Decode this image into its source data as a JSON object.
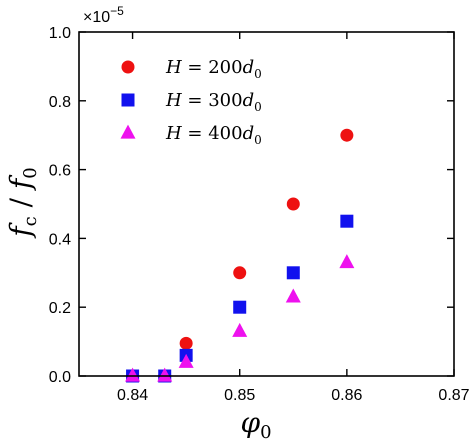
{
  "chart_data": {
    "type": "scatter",
    "xlabel": "φ",
    "xlabel_sub": "0",
    "ylabel_num": "f",
    "ylabel_num_sub": "c",
    "ylabel_slash": " / ",
    "ylabel_den": "f",
    "ylabel_den_sub": "0",
    "xlim": [
      0.835,
      0.87
    ],
    "ylim": [
      0,
      1.0
    ],
    "xticks": [
      0.84,
      0.85,
      0.86,
      0.87
    ],
    "xtick_labels": [
      "0.84",
      "0.85",
      "0.86",
      "0.87"
    ],
    "yticks": [
      0.0,
      0.2,
      0.4,
      0.6,
      0.8,
      1.0
    ],
    "ytick_labels": [
      "0.0",
      "0.2",
      "0.4",
      "0.6",
      "0.8",
      "1.0"
    ],
    "y_multiplier_base": "×10",
    "y_multiplier_exp": "−5",
    "legend_position": "top-left",
    "series": [
      {
        "name": "H = 200d0",
        "legend_parts": [
          "H",
          " = 200",
          "d",
          "0"
        ],
        "marker": "circle",
        "color": "#ee1111",
        "x": [
          0.84,
          0.843,
          0.845,
          0.85,
          0.855,
          0.86
        ],
        "y": [
          0.0,
          0.0,
          0.095,
          0.3,
          0.5,
          0.7
        ]
      },
      {
        "name": "H = 300d0",
        "legend_parts": [
          "H",
          " = 300",
          "d",
          "0"
        ],
        "marker": "square",
        "color": "#1111ee",
        "x": [
          0.84,
          0.843,
          0.845,
          0.85,
          0.855,
          0.86
        ],
        "y": [
          0.0,
          0.0,
          0.06,
          0.2,
          0.3,
          0.45
        ]
      },
      {
        "name": "H = 400d0",
        "legend_parts": [
          "H",
          " = 400",
          "d",
          "0"
        ],
        "marker": "triangle",
        "color": "#ee11ee",
        "x": [
          0.84,
          0.843,
          0.845,
          0.85,
          0.855,
          0.86
        ],
        "y": [
          0.0,
          0.0,
          0.04,
          0.13,
          0.23,
          0.33
        ]
      }
    ]
  }
}
